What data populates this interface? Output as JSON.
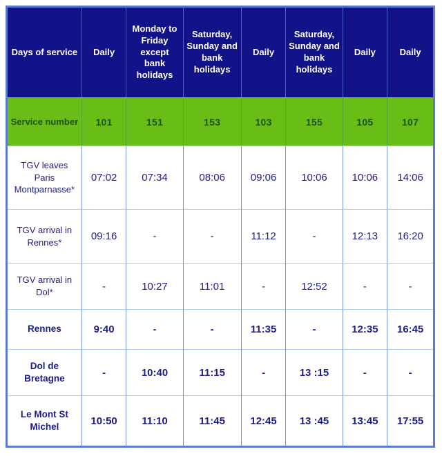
{
  "colors": {
    "header_bg": "#131389",
    "header_text": "#ffffff",
    "service_row_bg": "#69bd17",
    "service_row_text": "#1d521d",
    "body_text": "#1d1d87",
    "outer_border": "#5b7bd0",
    "inner_border_vertical": "#7396d6",
    "inner_border_horizontal": "#aecdec"
  },
  "table": {
    "corner_header": "Days of service",
    "column_headers": [
      "Daily",
      "Monday to Friday except bank holidays",
      "Saturday, Sunday and bank holidays",
      "Daily",
      "Saturday, Sunday and bank holidays",
      "Daily",
      "Daily"
    ],
    "rows": [
      {
        "label": "Service number",
        "style": "service",
        "values": [
          "101",
          "151",
          "153",
          "103",
          "155",
          "105",
          "107"
        ]
      },
      {
        "label": "TGV leaves Paris Montparnasse*",
        "style": "regular",
        "values": [
          "07:02",
          "07:34",
          "08:06",
          "09:06",
          "10:06",
          "10:06",
          "14:06"
        ]
      },
      {
        "label": "TGV arrival in Rennes*",
        "style": "regular",
        "values": [
          "09:16",
          "-",
          "-",
          "11:12",
          "-",
          "12:13",
          "16:20"
        ]
      },
      {
        "label": "TGV arrival in Dol*",
        "style": "regular",
        "values": [
          "-",
          "10:27",
          "11:01",
          "-",
          "12:52",
          "-",
          "-"
        ]
      },
      {
        "label": "Rennes",
        "style": "bold",
        "values": [
          "9:40",
          "-",
          "-",
          "11:35",
          "-",
          "12:35",
          "16:45"
        ]
      },
      {
        "label": "Dol de Bretagne",
        "style": "bold",
        "values": [
          "-",
          "10:40",
          "11:15",
          "-",
          "13 :15",
          "-",
          "-"
        ]
      },
      {
        "label": "Le Mont St Michel",
        "style": "bold",
        "values": [
          "10:50",
          "11:10",
          "11:45",
          "12:45",
          "13 :45",
          "13:45",
          "17:55"
        ]
      }
    ]
  }
}
